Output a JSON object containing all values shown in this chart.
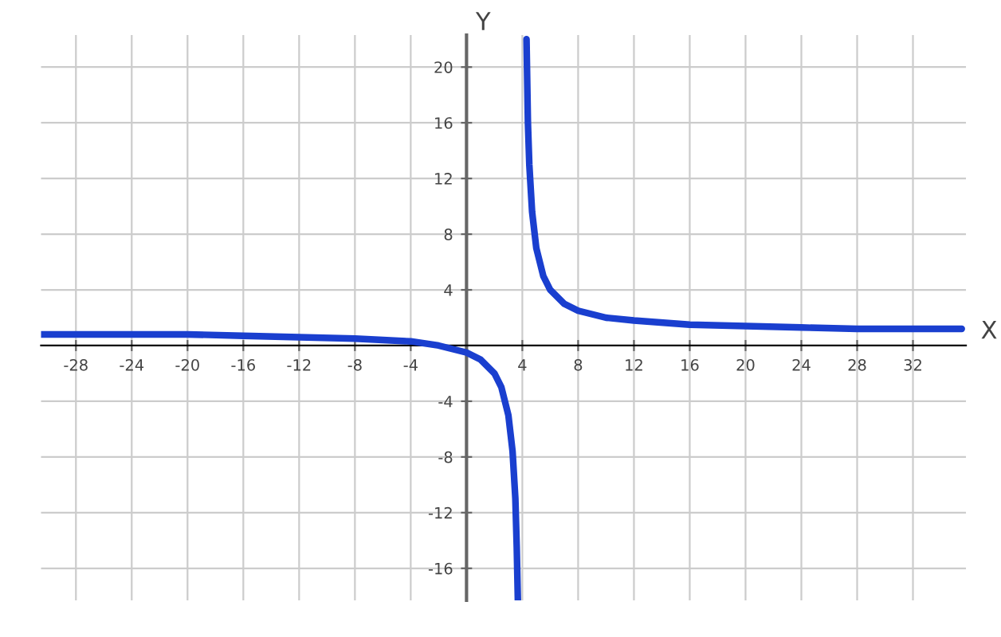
{
  "chart_data": {
    "type": "line",
    "xlabel": "X",
    "ylabel": "Y",
    "series": [
      {
        "color": "#1a3fcf",
        "x": [
          -30.5,
          -28,
          -24,
          -20,
          -16,
          -12,
          -8,
          -6,
          -4,
          -2,
          0,
          1,
          2,
          2.5,
          3,
          3.3,
          3.5,
          3.6,
          3.68
        ],
        "values": [
          0.8,
          0.8,
          0.8,
          0.8,
          0.7,
          0.6,
          0.5,
          0.4,
          0.3,
          0,
          -0.5,
          -1,
          -2,
          -3,
          -5,
          -7.6,
          -11,
          -14.5,
          -18.3
        ]
      },
      {
        "color": "#1a3fcf",
        "x": [
          4.3,
          4.4,
          4.5,
          4.7,
          5,
          5.5,
          6,
          7,
          8,
          10,
          12,
          16,
          20,
          24,
          28,
          32,
          35.5
        ],
        "values": [
          22,
          16,
          13,
          9.6,
          7,
          5,
          4,
          3,
          2.5,
          2,
          1.8,
          1.5,
          1.4,
          1.3,
          1.2,
          1.2,
          1.2
        ]
      }
    ],
    "xlim": [
      -30.5,
      35.8
    ],
    "ylim": [
      -18.3,
      22.3
    ],
    "xticks": [
      -28,
      -24,
      -20,
      -16,
      -12,
      -8,
      -4,
      4,
      8,
      12,
      16,
      20,
      24,
      28,
      32
    ],
    "yticks": [
      -16,
      -12,
      -8,
      -4,
      4,
      8,
      12,
      16,
      20
    ],
    "grid": true,
    "line_style": "solid",
    "marker": "none"
  }
}
